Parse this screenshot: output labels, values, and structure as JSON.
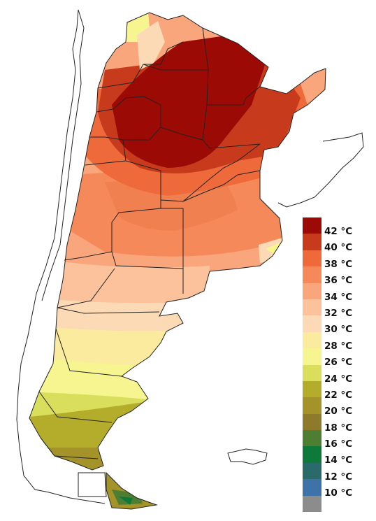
{
  "legend": {
    "items": [
      {
        "label": "42 °C",
        "color": "#9c0a05"
      },
      {
        "label": "40 °C",
        "color": "#c83a1c"
      },
      {
        "label": "38 °C",
        "color": "#ee6a3a"
      },
      {
        "label": "36 °C",
        "color": "#f6895a"
      },
      {
        "label": "34 °C",
        "color": "#f9a67c"
      },
      {
        "label": "32 °C",
        "color": "#fbc29c"
      },
      {
        "label": "30 °C",
        "color": "#fcdab6"
      },
      {
        "label": "28 °C",
        "color": "#fbeb9e"
      },
      {
        "label": "26 °C",
        "color": "#f6f58f"
      },
      {
        "label": "24 °C",
        "color": "#d9df5c"
      },
      {
        "label": "22 °C",
        "color": "#b4ad2c"
      },
      {
        "label": "20 °C",
        "color": "#a39328"
      },
      {
        "label": "18 °C",
        "color": "#8d7a2a"
      },
      {
        "label": "16 °C",
        "color": "#4e7e32"
      },
      {
        "label": "14 °C",
        "color": "#0e7a3a"
      },
      {
        "label": "12 °C",
        "color": "#2b6a6a"
      },
      {
        "label": "10 °C",
        "color": "#3d73a8"
      },
      {
        "label": "",
        "color": "#8c8c8c"
      }
    ]
  }
}
